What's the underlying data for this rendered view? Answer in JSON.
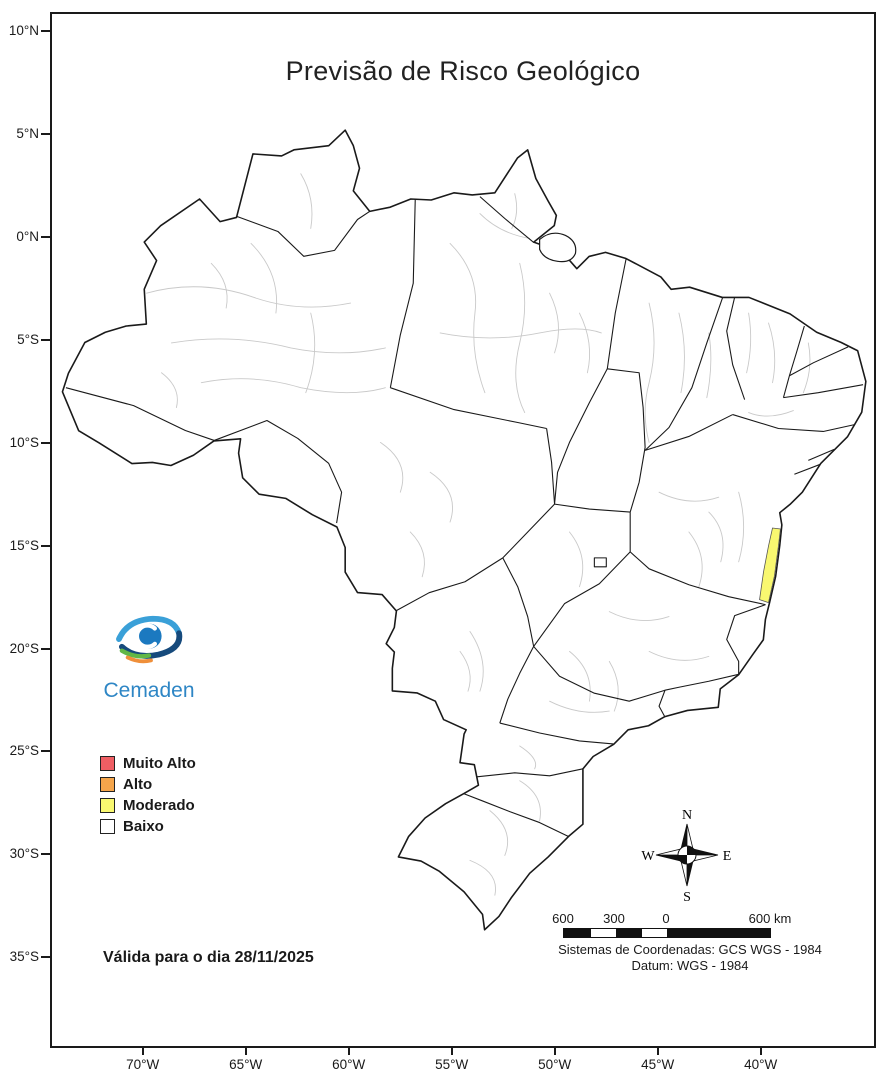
{
  "title": "Previsão de Risco Geológico",
  "logo": {
    "text": "Cemaden",
    "colors": {
      "dark": "#164a7c",
      "mid": "#1b79c0",
      "light": "#3aa0d8",
      "green": "#62b746",
      "orange": "#ef8f3a",
      "text": "#2e86c5"
    }
  },
  "legend": {
    "items": [
      {
        "label": "Muito Alto",
        "color": "#ef5e63"
      },
      {
        "label": "Alto",
        "color": "#f5a54b"
      },
      {
        "label": "Moderado",
        "color": "#f9f870"
      },
      {
        "label": "Baixo",
        "color": "#ffffff"
      }
    ]
  },
  "validity": {
    "text": "Válida para o dia 28/11/2025"
  },
  "compass": {
    "n": "N",
    "e": "E",
    "s": "S",
    "w": "W"
  },
  "scalebar": {
    "labels": [
      "600",
      "300",
      "0",
      "600 km"
    ]
  },
  "crs": {
    "line1": "Sistemas de Coordenadas: GCS WGS - 1984",
    "line2": "Datum: WGS - 1984"
  },
  "axes": {
    "lat": [
      "10°N",
      "5°N",
      "0°N",
      "5°S",
      "10°S",
      "15°S",
      "20°S",
      "25°S",
      "30°S",
      "35°S"
    ],
    "lon": [
      "70°W",
      "65°W",
      "60°W",
      "55°W",
      "50°W",
      "45°W",
      "40°W"
    ]
  },
  "map": {
    "highlight_level": "Moderado",
    "colors": {
      "land": "#ffffff",
      "state_border": "#1a1a1a",
      "subdivision_border": "#c9c9c9",
      "moderado_fill": "#f9f870"
    }
  }
}
